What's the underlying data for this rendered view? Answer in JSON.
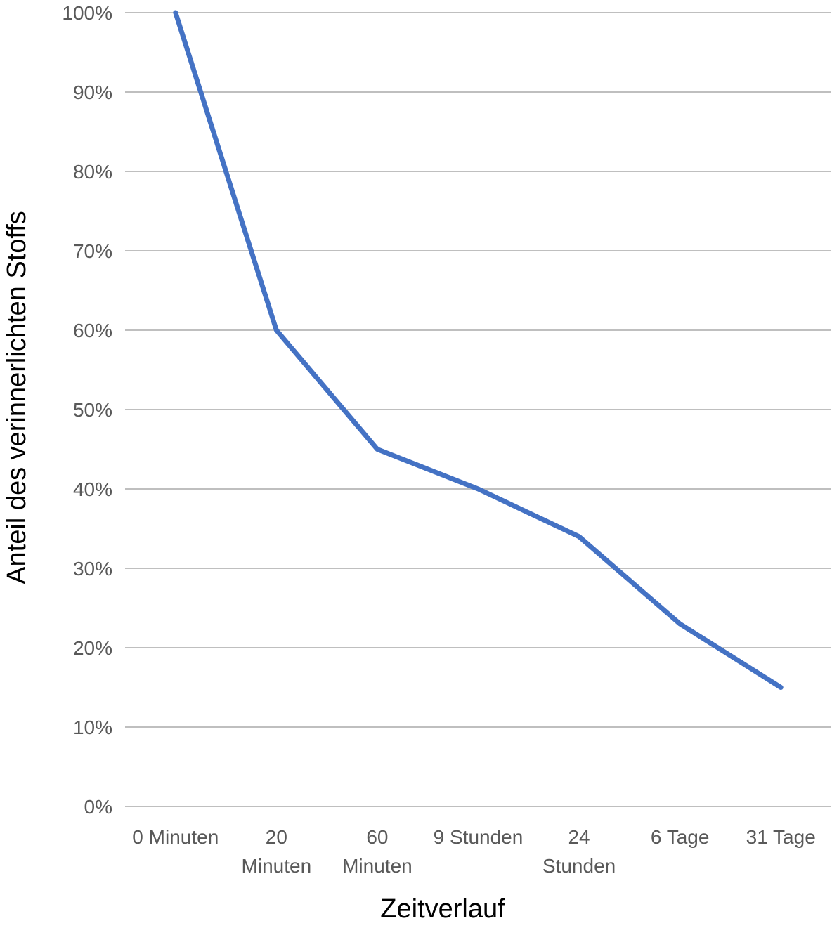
{
  "chart_data": {
    "type": "line",
    "xlabel": "Zeitverlauf",
    "ylabel": "Anteil des verinnerlichten Stoffs",
    "categories": [
      [
        "0 Minuten"
      ],
      [
        "20",
        "Minuten"
      ],
      [
        "60",
        "Minuten"
      ],
      [
        "9 Stunden"
      ],
      [
        "24",
        "Stunden"
      ],
      [
        "6 Tage"
      ],
      [
        "31 Tage"
      ]
    ],
    "y_ticks": [
      "0%",
      "10%",
      "20%",
      "30%",
      "40%",
      "50%",
      "60%",
      "70%",
      "80%",
      "90%",
      "100%"
    ],
    "ylim": [
      0,
      100
    ],
    "y_unit": "%",
    "grid": true,
    "legend": "none",
    "series": [
      {
        "values": [
          100,
          60,
          45,
          40,
          34,
          23,
          15
        ],
        "color": "#4472c4"
      }
    ]
  }
}
